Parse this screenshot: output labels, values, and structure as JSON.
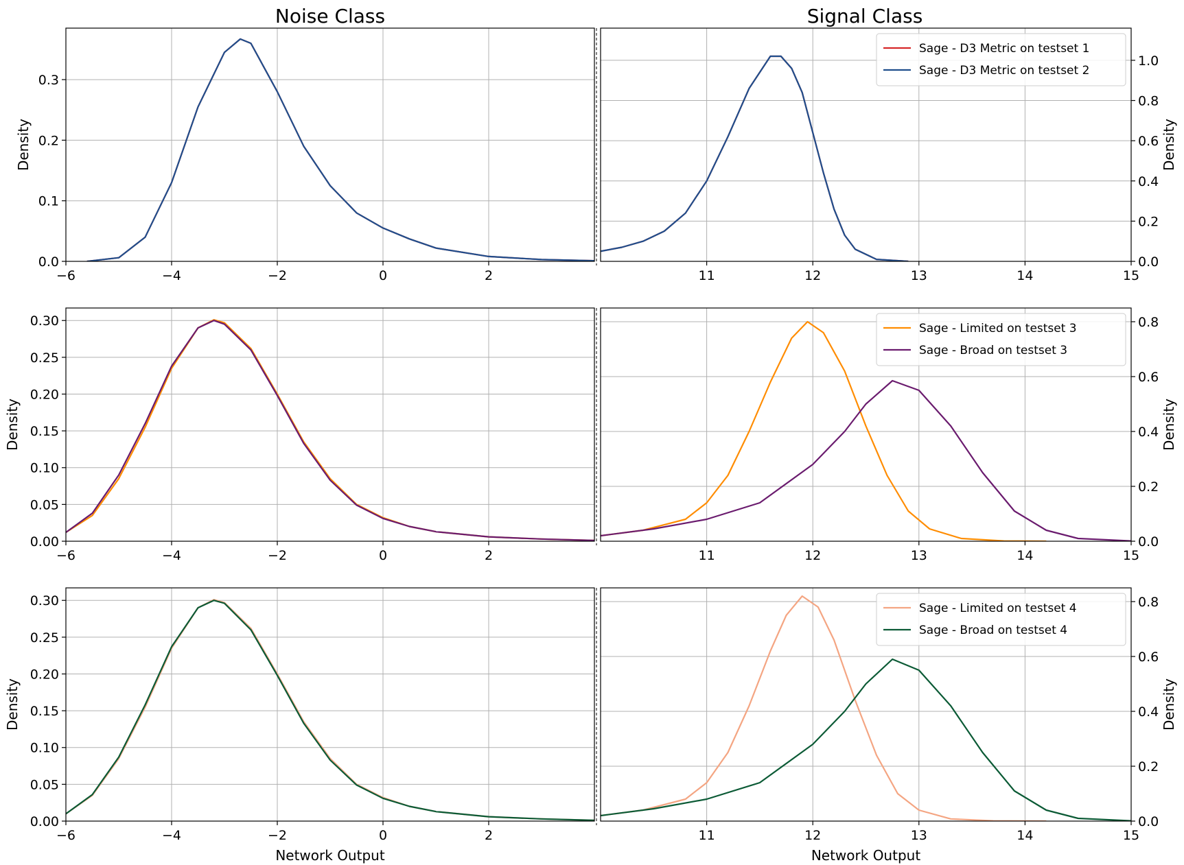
{
  "column_titles": {
    "left": "Noise Class",
    "right": "Signal Class"
  },
  "chart_data": [
    {
      "type": "line",
      "row": 0,
      "panel": "noise",
      "xlabel": "",
      "ylabel": "Density",
      "xlim": [
        -6,
        4
      ],
      "ylim": [
        0,
        0.385
      ],
      "grid": true,
      "xticks": [
        -6,
        -4,
        -2,
        0,
        2
      ],
      "xticklabels": [
        "−6",
        "−4",
        "−2",
        "0",
        "2"
      ],
      "yticks": [
        0,
        0.1,
        0.2,
        0.3
      ],
      "yticklabels": [
        "0.0",
        "0.1",
        "0.2",
        "0.3"
      ],
      "series": [
        {
          "color": "#d62728",
          "x": [
            -5.6,
            -5.0,
            -4.5,
            -4.0,
            -3.5,
            -3.0,
            -2.7,
            -2.5,
            -2.0,
            -1.5,
            -1.0,
            -0.5,
            0.0,
            0.5,
            1.0,
            2.0,
            3.0,
            4.0
          ],
          "values": [
            0.0,
            0.006,
            0.04,
            0.13,
            0.255,
            0.345,
            0.367,
            0.36,
            0.28,
            0.19,
            0.125,
            0.08,
            0.055,
            0.037,
            0.022,
            0.008,
            0.003,
            0.001
          ]
        },
        {
          "color": "#1f4e8c",
          "x": [
            -5.6,
            -5.0,
            -4.5,
            -4.0,
            -3.5,
            -3.0,
            -2.7,
            -2.5,
            -2.0,
            -1.5,
            -1.0,
            -0.5,
            0.0,
            0.5,
            1.0,
            2.0,
            3.0,
            4.0
          ],
          "values": [
            0.0,
            0.006,
            0.04,
            0.13,
            0.255,
            0.345,
            0.367,
            0.36,
            0.28,
            0.19,
            0.125,
            0.08,
            0.055,
            0.037,
            0.022,
            0.008,
            0.003,
            0.001
          ]
        }
      ]
    },
    {
      "type": "line",
      "row": 0,
      "panel": "signal",
      "xlabel": "",
      "ylabel": "Density",
      "xlim": [
        10,
        15
      ],
      "ylim": [
        0,
        1.16
      ],
      "grid": true,
      "legend": "top-right",
      "xticks": [
        11,
        12,
        13,
        14,
        15
      ],
      "xticklabels": [
        "11",
        "12",
        "13",
        "14",
        "15"
      ],
      "yticks": [
        0,
        0.2,
        0.4,
        0.6,
        0.8,
        1.0
      ],
      "yticklabels": [
        "0.0",
        "0.2",
        "0.4",
        "0.6",
        "0.8",
        "1.0"
      ],
      "series": [
        {
          "name": "Sage - D3 Metric on testset 1",
          "color": "#d62728",
          "x": [
            10.0,
            10.2,
            10.4,
            10.6,
            10.8,
            11.0,
            11.2,
            11.4,
            11.6,
            11.7,
            11.8,
            11.9,
            12.0,
            12.1,
            12.2,
            12.3,
            12.4,
            12.6,
            12.9
          ],
          "values": [
            0.05,
            0.07,
            0.1,
            0.15,
            0.24,
            0.4,
            0.62,
            0.86,
            1.02,
            1.02,
            0.96,
            0.84,
            0.64,
            0.44,
            0.26,
            0.13,
            0.06,
            0.01,
            0.0
          ]
        },
        {
          "name": "Sage - D3 Metric on testset 2",
          "color": "#1f4e8c",
          "x": [
            10.0,
            10.2,
            10.4,
            10.6,
            10.8,
            11.0,
            11.2,
            11.4,
            11.6,
            11.7,
            11.8,
            11.9,
            12.0,
            12.1,
            12.2,
            12.3,
            12.4,
            12.6,
            12.9
          ],
          "values": [
            0.05,
            0.07,
            0.1,
            0.15,
            0.24,
            0.4,
            0.62,
            0.86,
            1.02,
            1.02,
            0.96,
            0.84,
            0.64,
            0.44,
            0.26,
            0.13,
            0.06,
            0.01,
            0.0
          ]
        }
      ]
    },
    {
      "type": "line",
      "row": 1,
      "panel": "noise",
      "xlabel": "",
      "ylabel": "Density",
      "xlim": [
        -6,
        4
      ],
      "ylim": [
        0,
        0.317
      ],
      "grid": true,
      "xticks": [
        -6,
        -4,
        -2,
        0,
        2
      ],
      "xticklabels": [
        "−6",
        "−4",
        "−2",
        "0",
        "2"
      ],
      "yticks": [
        0,
        0.05,
        0.1,
        0.15,
        0.2,
        0.25,
        0.3
      ],
      "yticklabels": [
        "0.00",
        "0.05",
        "0.10",
        "0.15",
        "0.20",
        "0.25",
        "0.30"
      ],
      "series": [
        {
          "color": "#ff8c00",
          "x": [
            -6.0,
            -5.5,
            -5.0,
            -4.5,
            -4.0,
            -3.5,
            -3.2,
            -3.0,
            -2.5,
            -2.0,
            -1.5,
            -1.0,
            -0.5,
            0.0,
            0.5,
            1.0,
            2.0,
            3.0,
            4.0
          ],
          "values": [
            0.012,
            0.035,
            0.085,
            0.155,
            0.235,
            0.29,
            0.301,
            0.297,
            0.262,
            0.2,
            0.135,
            0.085,
            0.05,
            0.032,
            0.02,
            0.013,
            0.006,
            0.003,
            0.001
          ]
        },
        {
          "color": "#6a1b6e",
          "x": [
            -6.0,
            -5.5,
            -5.0,
            -4.5,
            -4.0,
            -3.5,
            -3.2,
            -3.0,
            -2.5,
            -2.0,
            -1.5,
            -1.0,
            -0.5,
            0.0,
            0.5,
            1.0,
            2.0,
            3.0,
            4.0
          ],
          "values": [
            0.012,
            0.038,
            0.09,
            0.16,
            0.238,
            0.29,
            0.3,
            0.295,
            0.26,
            0.198,
            0.133,
            0.083,
            0.049,
            0.031,
            0.02,
            0.013,
            0.006,
            0.003,
            0.001
          ]
        }
      ]
    },
    {
      "type": "line",
      "row": 1,
      "panel": "signal",
      "xlabel": "",
      "ylabel": "Density",
      "xlim": [
        10,
        15
      ],
      "ylim": [
        0,
        0.85
      ],
      "grid": true,
      "legend": "top-right",
      "xticks": [
        11,
        12,
        13,
        14,
        15
      ],
      "xticklabels": [
        "11",
        "12",
        "13",
        "14",
        "15"
      ],
      "yticks": [
        0,
        0.2,
        0.4,
        0.6,
        0.8
      ],
      "yticklabels": [
        "0.0",
        "0.2",
        "0.4",
        "0.6",
        "0.8"
      ],
      "series": [
        {
          "name": "Sage - Limited on testset 3",
          "color": "#ff8c00",
          "x": [
            10.0,
            10.4,
            10.8,
            11.0,
            11.2,
            11.4,
            11.6,
            11.8,
            11.95,
            12.1,
            12.3,
            12.5,
            12.7,
            12.9,
            13.1,
            13.4,
            13.8,
            14.2
          ],
          "values": [
            0.02,
            0.04,
            0.08,
            0.14,
            0.24,
            0.4,
            0.58,
            0.74,
            0.8,
            0.76,
            0.62,
            0.42,
            0.24,
            0.11,
            0.045,
            0.01,
            0.001,
            0.0
          ]
        },
        {
          "name": "Sage - Broad on testset 3",
          "color": "#6a1b6e",
          "x": [
            10.0,
            10.5,
            11.0,
            11.5,
            12.0,
            12.3,
            12.5,
            12.75,
            13.0,
            13.3,
            13.6,
            13.9,
            14.2,
            14.5,
            15.0
          ],
          "values": [
            0.02,
            0.045,
            0.08,
            0.14,
            0.28,
            0.4,
            0.5,
            0.585,
            0.55,
            0.42,
            0.25,
            0.11,
            0.04,
            0.01,
            0.001
          ]
        }
      ]
    },
    {
      "type": "line",
      "row": 2,
      "panel": "noise",
      "xlabel": "Network Output",
      "ylabel": "Density",
      "xlim": [
        -6,
        4
      ],
      "ylim": [
        0,
        0.317
      ],
      "grid": true,
      "xticks": [
        -6,
        -4,
        -2,
        0,
        2
      ],
      "xticklabels": [
        "−6",
        "−4",
        "−2",
        "0",
        "2"
      ],
      "yticks": [
        0,
        0.05,
        0.1,
        0.15,
        0.2,
        0.25,
        0.3
      ],
      "yticklabels": [
        "0.00",
        "0.05",
        "0.10",
        "0.15",
        "0.20",
        "0.25",
        "0.30"
      ],
      "series": [
        {
          "color": "#f4a582",
          "x": [
            -6.0,
            -5.5,
            -5.0,
            -4.5,
            -4.0,
            -3.5,
            -3.2,
            -3.0,
            -2.5,
            -2.0,
            -1.5,
            -1.0,
            -0.5,
            0.0,
            0.5,
            1.0,
            2.0,
            3.0,
            4.0
          ],
          "values": [
            0.01,
            0.035,
            0.085,
            0.155,
            0.235,
            0.29,
            0.301,
            0.297,
            0.262,
            0.2,
            0.135,
            0.085,
            0.05,
            0.032,
            0.02,
            0.013,
            0.006,
            0.003,
            0.001
          ]
        },
        {
          "color": "#0b5a35",
          "x": [
            -6.0,
            -5.5,
            -5.0,
            -4.5,
            -4.0,
            -3.5,
            -3.2,
            -3.0,
            -2.5,
            -2.0,
            -1.5,
            -1.0,
            -0.5,
            0.0,
            0.5,
            1.0,
            2.0,
            3.0,
            4.0
          ],
          "values": [
            0.01,
            0.036,
            0.087,
            0.158,
            0.237,
            0.29,
            0.3,
            0.296,
            0.26,
            0.198,
            0.133,
            0.083,
            0.049,
            0.031,
            0.02,
            0.013,
            0.006,
            0.003,
            0.001
          ]
        }
      ]
    },
    {
      "type": "line",
      "row": 2,
      "panel": "signal",
      "xlabel": "Network Output",
      "ylabel": "Density",
      "xlim": [
        10,
        15
      ],
      "ylim": [
        0,
        0.85
      ],
      "grid": true,
      "legend": "top-right",
      "xticks": [
        11,
        12,
        13,
        14,
        15
      ],
      "xticklabels": [
        "11",
        "12",
        "13",
        "14",
        "15"
      ],
      "yticks": [
        0,
        0.2,
        0.4,
        0.6,
        0.8
      ],
      "yticklabels": [
        "0.0",
        "0.2",
        "0.4",
        "0.6",
        "0.8"
      ],
      "series": [
        {
          "name": "Sage - Limited on testset 4",
          "color": "#f4a582",
          "x": [
            10.0,
            10.4,
            10.8,
            11.0,
            11.2,
            11.4,
            11.6,
            11.75,
            11.9,
            12.05,
            12.2,
            12.4,
            12.6,
            12.8,
            13.0,
            13.3,
            13.7,
            14.2
          ],
          "values": [
            0.02,
            0.04,
            0.08,
            0.14,
            0.25,
            0.42,
            0.62,
            0.75,
            0.82,
            0.78,
            0.66,
            0.44,
            0.24,
            0.1,
            0.04,
            0.008,
            0.001,
            0.0
          ]
        },
        {
          "name": "Sage - Broad on testset 4",
          "color": "#0b5a35",
          "x": [
            10.0,
            10.5,
            11.0,
            11.5,
            12.0,
            12.3,
            12.5,
            12.75,
            13.0,
            13.3,
            13.6,
            13.9,
            14.2,
            14.5,
            15.0
          ],
          "values": [
            0.02,
            0.045,
            0.08,
            0.14,
            0.28,
            0.4,
            0.5,
            0.59,
            0.55,
            0.42,
            0.25,
            0.11,
            0.04,
            0.01,
            0.001
          ]
        }
      ]
    }
  ]
}
